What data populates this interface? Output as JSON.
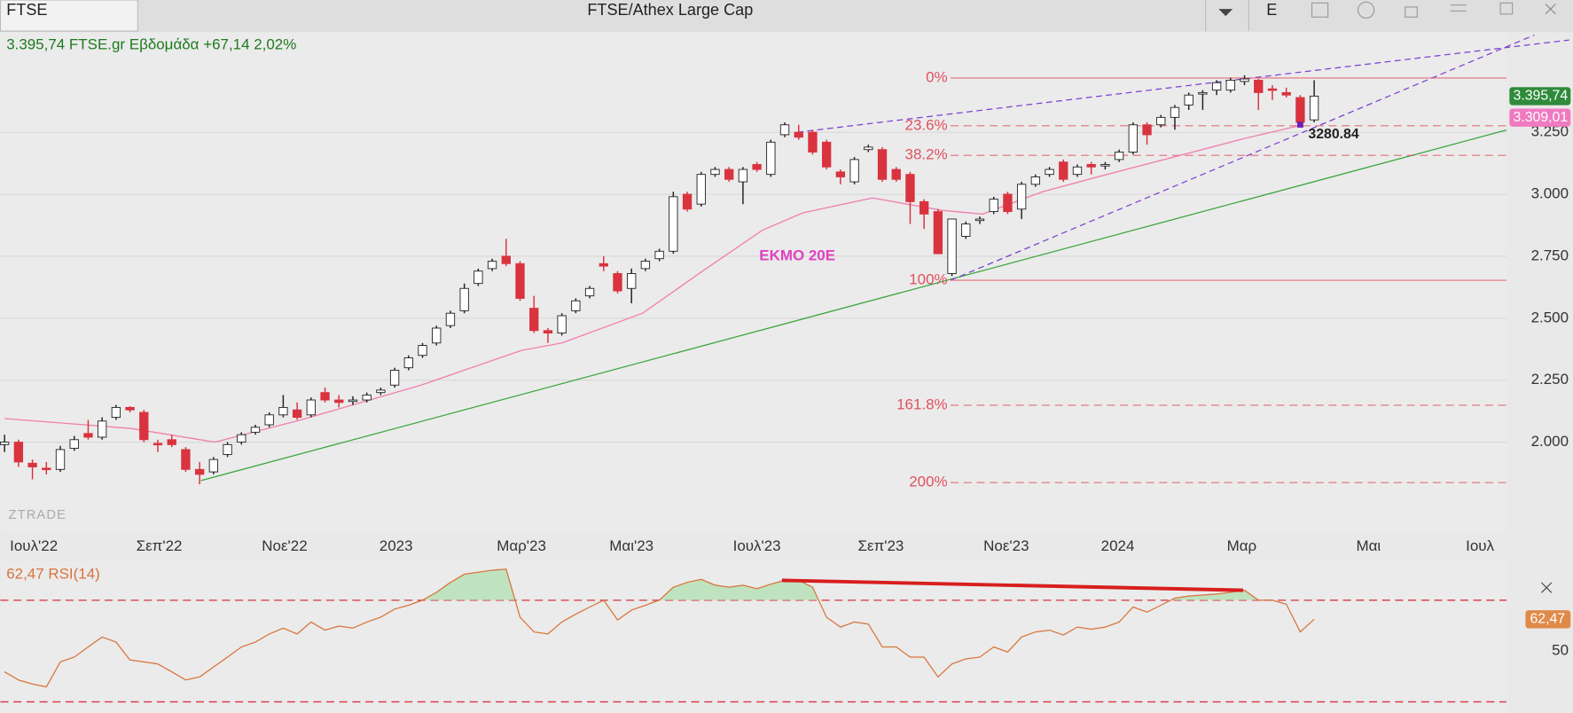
{
  "toolbar": {
    "tab": "FTSE",
    "title": "FTSE/Athex Large Cap",
    "button": "E"
  },
  "chart_data": {
    "type": "candlestick",
    "header": "3.395,74 FTSE.gr Εβδομάδα +67,14 2,02%",
    "watermark": "ZTRADE",
    "xlim": [
      -0.3,
      107.8
    ],
    "xticks": [
      {
        "value": 2.1,
        "label": "Ιουλ'22"
      },
      {
        "value": 11.1,
        "label": "Σεπ'22"
      },
      {
        "value": 20.1,
        "label": "Νοε'22"
      },
      {
        "value": 28.1,
        "label": "2023"
      },
      {
        "value": 37.1,
        "label": "Μαρ'23"
      },
      {
        "value": 45,
        "label": "Μαι'23"
      },
      {
        "value": 54,
        "label": "Ιουλ'23"
      },
      {
        "value": 62.9,
        "label": "Σεπ'23"
      },
      {
        "value": 71.9,
        "label": "Νοε'23"
      },
      {
        "value": 79.9,
        "label": "2024"
      },
      {
        "value": 88.8,
        "label": "Μαρ"
      },
      {
        "value": 97.9,
        "label": "Μαι"
      },
      {
        "value": 105.9,
        "label": "Ιουλ"
      }
    ],
    "ylim": [
      1680,
      3650
    ],
    "yticks": [
      {
        "value": 2000,
        "label": "2.000"
      },
      {
        "value": 2250,
        "label": "2.250"
      },
      {
        "value": 2500,
        "label": "2.500"
      },
      {
        "value": 2750,
        "label": "2.750"
      },
      {
        "value": 3000,
        "label": "3.000"
      },
      {
        "value": 3250,
        "label": "3.250"
      }
    ],
    "grid": true,
    "up_color": "#ffffff",
    "down_color": "#d9333f",
    "candles": [
      [
        1990,
        2030,
        1960,
        2000
      ],
      [
        2000,
        2010,
        1900,
        1920
      ],
      [
        1915,
        1930,
        1850,
        1900
      ],
      [
        1895,
        1920,
        1870,
        1890
      ],
      [
        1890,
        1985,
        1880,
        1970
      ],
      [
        1975,
        2025,
        1965,
        2010
      ],
      [
        2035,
        2090,
        2010,
        2020
      ],
      [
        2020,
        2100,
        2010,
        2085
      ],
      [
        2100,
        2150,
        2090,
        2140
      ],
      [
        2140,
        2145,
        2120,
        2130
      ],
      [
        2120,
        2130,
        2000,
        2010
      ],
      [
        1995,
        2010,
        1960,
        1990
      ],
      [
        2010,
        2030,
        1980,
        1990
      ],
      [
        1970,
        1980,
        1880,
        1890
      ],
      [
        1890,
        1920,
        1830,
        1870
      ],
      [
        1880,
        1940,
        1870,
        1930
      ],
      [
        1950,
        2000,
        1940,
        1990
      ],
      [
        2000,
        2040,
        1990,
        2030
      ],
      [
        2040,
        2070,
        2030,
        2060
      ],
      [
        2070,
        2120,
        2060,
        2110
      ],
      [
        2110,
        2190,
        2100,
        2140
      ],
      [
        2130,
        2160,
        2090,
        2100
      ],
      [
        2110,
        2180,
        2100,
        2170
      ],
      [
        2200,
        2220,
        2160,
        2170
      ],
      [
        2170,
        2190,
        2140,
        2160
      ],
      [
        2165,
        2185,
        2150,
        2170
      ],
      [
        2170,
        2200,
        2160,
        2190
      ],
      [
        2200,
        2220,
        2190,
        2210
      ],
      [
        2230,
        2300,
        2220,
        2290
      ],
      [
        2300,
        2350,
        2290,
        2340
      ],
      [
        2350,
        2400,
        2340,
        2390
      ],
      [
        2400,
        2470,
        2390,
        2460
      ],
      [
        2470,
        2530,
        2460,
        2520
      ],
      [
        2530,
        2640,
        2520,
        2620
      ],
      [
        2640,
        2700,
        2630,
        2690
      ],
      [
        2700,
        2740,
        2690,
        2730
      ],
      [
        2750,
        2820,
        2710,
        2720
      ],
      [
        2720,
        2730,
        2570,
        2580
      ],
      [
        2540,
        2590,
        2440,
        2450
      ],
      [
        2450,
        2460,
        2400,
        2440
      ],
      [
        2440,
        2520,
        2430,
        2510
      ],
      [
        2530,
        2580,
        2520,
        2570
      ],
      [
        2590,
        2630,
        2580,
        2620
      ],
      [
        2720,
        2750,
        2690,
        2710
      ],
      [
        2680,
        2690,
        2600,
        2610
      ],
      [
        2620,
        2700,
        2560,
        2680
      ],
      [
        2700,
        2740,
        2690,
        2730
      ],
      [
        2740,
        2780,
        2730,
        2770
      ],
      [
        2770,
        3010,
        2760,
        2990
      ],
      [
        3000,
        3010,
        2930,
        2940
      ],
      [
        2960,
        3090,
        2950,
        3080
      ],
      [
        3080,
        3110,
        3070,
        3100
      ],
      [
        3100,
        3110,
        3050,
        3060
      ],
      [
        3050,
        3110,
        2960,
        3100
      ],
      [
        3120,
        3130,
        3090,
        3100
      ],
      [
        3080,
        3220,
        3070,
        3210
      ],
      [
        3240,
        3290,
        3230,
        3280
      ],
      [
        3250,
        3280,
        3220,
        3230
      ],
      [
        3250,
        3260,
        3160,
        3170
      ],
      [
        3210,
        3220,
        3100,
        3110
      ],
      [
        3090,
        3100,
        3040,
        3070
      ],
      [
        3050,
        3150,
        3040,
        3140
      ],
      [
        3180,
        3200,
        3170,
        3190
      ],
      [
        3180,
        3190,
        3050,
        3060
      ],
      [
        3100,
        3110,
        3050,
        3060
      ],
      [
        3080,
        3090,
        2880,
        2970
      ],
      [
        2970,
        2980,
        2860,
        2920
      ],
      [
        2930,
        2940,
        2760,
        2760
      ],
      [
        2680,
        2900,
        2670,
        2900
      ],
      [
        2830,
        2890,
        2820,
        2880
      ],
      [
        2895,
        2910,
        2880,
        2900
      ],
      [
        2930,
        2990,
        2920,
        2980
      ],
      [
        3000,
        3010,
        2920,
        2930
      ],
      [
        2940,
        3050,
        2900,
        3040
      ],
      [
        3040,
        3080,
        3030,
        3070
      ],
      [
        3080,
        3110,
        3070,
        3100
      ],
      [
        3130,
        3140,
        3050,
        3060
      ],
      [
        3080,
        3120,
        3070,
        3110
      ],
      [
        3120,
        3130,
        3080,
        3110
      ],
      [
        3115,
        3130,
        3100,
        3120
      ],
      [
        3140,
        3180,
        3130,
        3170
      ],
      [
        3170,
        3290,
        3160,
        3280
      ],
      [
        3280,
        3290,
        3200,
        3240
      ],
      [
        3280,
        3320,
        3270,
        3310
      ],
      [
        3310,
        3360,
        3260,
        3350
      ],
      [
        3360,
        3410,
        3340,
        3400
      ],
      [
        3405,
        3420,
        3340,
        3410
      ],
      [
        3420,
        3460,
        3400,
        3450
      ],
      [
        3420,
        3470,
        3410,
        3460
      ],
      [
        3455,
        3480,
        3440,
        3465
      ],
      [
        3460,
        3465,
        3340,
        3410
      ],
      [
        3425,
        3440,
        3380,
        3420
      ],
      [
        3410,
        3430,
        3390,
        3400
      ],
      [
        3390,
        3400,
        3280,
        3290
      ],
      [
        3300,
        3460,
        3290,
        3395.74
      ]
    ],
    "moving_average": {
      "name": "ΕΚΜΟ 20Ε",
      "color": "#f080b0",
      "label_x": 56.9,
      "label_value": 2750,
      "x": [
        0,
        9.1,
        15.1,
        21.3,
        29.9,
        37.1,
        40,
        45.8,
        50.1,
        54.4,
        57.3,
        62.3,
        67.3,
        70.2,
        74.5,
        78.8,
        84.6,
        89,
        93.2
      ],
      "values": [
        2095,
        2055,
        2000,
        2090,
        2230,
        2370,
        2400,
        2520,
        2690,
        2855,
        2925,
        2985,
        2935,
        2920,
        3010,
        3075,
        3160,
        3225,
        3280
      ]
    },
    "trendlines": [
      {
        "color": "#3aa53a",
        "dashed": false,
        "x": [
          14.1,
          107.8
        ],
        "values": [
          1845,
          3259
        ]
      },
      {
        "color": "#7b3fd0",
        "dashed": true,
        "x": [
          56.9,
          112.3
        ],
        "values": [
          3250,
          3622
        ]
      },
      {
        "color": "#7b3fd0",
        "dashed": true,
        "x": [
          67.9,
          109.8
        ],
        "values": [
          2653,
          3642
        ]
      }
    ],
    "fibonacci": {
      "color": "#e0505f",
      "x": [
        67.9,
        107.8
      ],
      "levels": [
        {
          "label": "0%",
          "value": 3469,
          "dashed": false
        },
        {
          "label": "23.6%",
          "value": 3276,
          "dashed": true
        },
        {
          "label": "38.2%",
          "value": 3157,
          "dashed": true
        },
        {
          "label": "100%",
          "value": 2653,
          "dashed": false
        },
        {
          "label": "161.8%",
          "value": 2149,
          "dashed": true
        },
        {
          "label": "200%",
          "value": 1837,
          "dashed": true
        }
      ]
    },
    "annotation": {
      "label": "3280.84",
      "x": 93,
      "value": 3280.84
    },
    "price_badges": [
      {
        "value": 3395.74,
        "label": "3.395,74",
        "color": "#2e8b3a"
      },
      {
        "value": 3309.01,
        "label": "3.309,01",
        "color": "#f07ac0"
      }
    ],
    "rsi": {
      "title": "62,47 RSI(14)",
      "color": "#d9733a",
      "ylim": [
        26,
        84
      ],
      "yticks": [
        50
      ],
      "levels": [
        30,
        70
      ],
      "values": [
        41.8,
        38.6,
        37,
        35.9,
        45.7,
        47.6,
        51.6,
        55.5,
        53.5,
        46.5,
        45.7,
        44.9,
        41.8,
        38.6,
        39.8,
        43.7,
        47.6,
        51.6,
        53.5,
        56.7,
        59,
        56.7,
        61.4,
        58.2,
        59.8,
        59,
        61.4,
        63.3,
        66.5,
        68,
        70,
        73.1,
        77,
        80.2,
        81,
        81.8,
        82.2,
        63.3,
        57.5,
        56.7,
        61.4,
        64.5,
        67.3,
        70,
        62.2,
        66.1,
        68,
        70,
        75.1,
        77,
        78.2,
        75.9,
        75.1,
        75.9,
        74.5,
        76.3,
        77.8,
        77.8,
        75.1,
        63.3,
        59.4,
        61.4,
        60.6,
        51.6,
        51.6,
        47.6,
        47.6,
        39.8,
        44.9,
        46.9,
        47.6,
        51.6,
        49.6,
        55.5,
        57.5,
        58.2,
        56.3,
        59.4,
        58.6,
        59.4,
        61.4,
        67.3,
        65.3,
        68,
        70.8,
        71.6,
        72,
        72.4,
        73.1,
        73.9,
        70,
        70,
        68.4,
        57.5,
        62.47
      ],
      "divergence": {
        "color": "#d81e1e",
        "x": [
          55.8,
          88.9
        ],
        "values": [
          77.8,
          73.9
        ]
      },
      "badge": {
        "value": 62.47,
        "label": "62,47"
      }
    }
  }
}
